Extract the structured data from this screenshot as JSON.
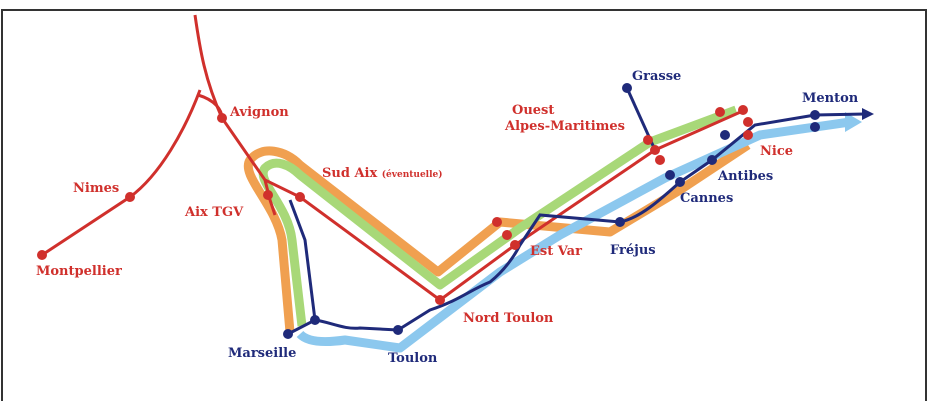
{
  "stations": {
    "avignon": "Avignon",
    "nimes": "Nimes",
    "montpellier": "Montpellier",
    "aix_tgv": "Aix TGV",
    "sud_aix": "Sud Aix",
    "sud_aix_note": "(éventuelle)",
    "nord_toulon": "Nord Toulon",
    "est_var": "Est Var",
    "ouest": [
      "Ouest",
      "Alpes-Maritimes"
    ],
    "nice": "Nice",
    "grasse": "Grasse",
    "menton": "Menton",
    "antibes": "Antibes",
    "cannes": "Cannes",
    "frejus": "Fréjus",
    "marseille": "Marseille",
    "toulon": "Toulon"
  }
}
